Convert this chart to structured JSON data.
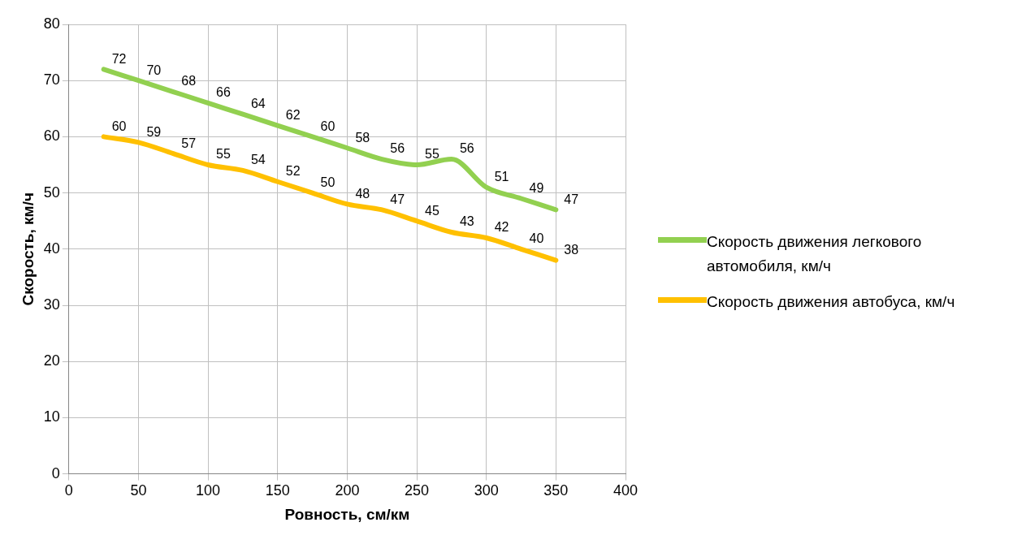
{
  "chart_data": {
    "type": "line",
    "xlabel": "Ровность, см/км",
    "ylabel": "Скорость, км/ч",
    "x": [
      25,
      50,
      75,
      100,
      125,
      150,
      175,
      200,
      225,
      250,
      275,
      300,
      325,
      350
    ],
    "series": [
      {
        "name": "Скорость движения легкового автомобиля, км/ч",
        "color": "#92d050",
        "values": [
          72,
          70,
          68,
          66,
          64,
          62,
          60,
          58,
          56,
          55,
          56,
          51,
          49,
          47
        ]
      },
      {
        "name": "Скорость движения автобуса, км/ч",
        "color": "#ffc000",
        "values": [
          60,
          59,
          57,
          55,
          54,
          52,
          50,
          48,
          47,
          45,
          43,
          42,
          40,
          38
        ]
      }
    ],
    "xlim": [
      0,
      400
    ],
    "xticks": [
      0,
      50,
      100,
      150,
      200,
      250,
      300,
      350,
      400
    ],
    "ylim": [
      0,
      80
    ],
    "yticks": [
      0,
      10,
      20,
      30,
      40,
      50,
      60,
      70,
      80
    ],
    "grid": true,
    "legend": "right",
    "marker": "none",
    "line_style": "solid",
    "data_labels": true
  }
}
